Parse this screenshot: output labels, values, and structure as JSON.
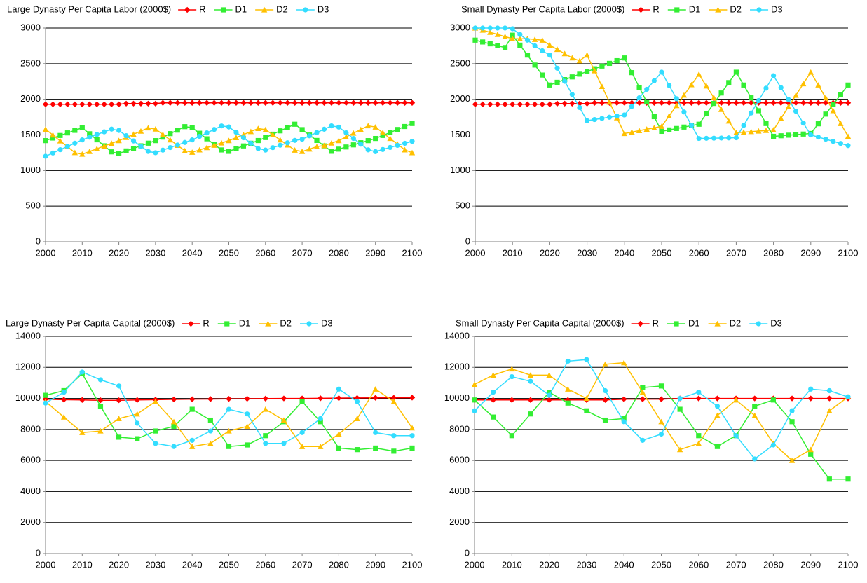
{
  "chart_data": [
    {
      "type": "line",
      "title": "Large Dynasty Per Capita Labor (2000$)",
      "grid": true,
      "x": [
        2000,
        2002,
        2004,
        2006,
        2008,
        2010,
        2012,
        2014,
        2016,
        2018,
        2020,
        2022,
        2024,
        2026,
        2028,
        2030,
        2032,
        2034,
        2036,
        2038,
        2040,
        2042,
        2044,
        2046,
        2048,
        2050,
        2052,
        2054,
        2056,
        2058,
        2060,
        2062,
        2064,
        2066,
        2068,
        2070,
        2072,
        2074,
        2076,
        2078,
        2080,
        2082,
        2084,
        2086,
        2088,
        2090,
        2092,
        2094,
        2096,
        2098,
        2100
      ],
      "xlim": [
        2000,
        2100
      ],
      "xticks": [
        2000,
        2010,
        2020,
        2030,
        2040,
        2050,
        2060,
        2070,
        2080,
        2090,
        2100
      ],
      "ylim": [
        0,
        3000
      ],
      "yticks": [
        0,
        500,
        1000,
        1500,
        2000,
        2500,
        3000
      ],
      "series": [
        {
          "name": "R",
          "color": "#ff0000",
          "marker": "diamond",
          "values": [
            1930,
            1930,
            1930,
            1930,
            1930,
            1930,
            1930,
            1930,
            1930,
            1930,
            1930,
            1940,
            1940,
            1940,
            1940,
            1940,
            1950,
            1950,
            1950,
            1950,
            1950,
            1950,
            1950,
            1950,
            1950,
            1950,
            1950,
            1950,
            1950,
            1950,
            1950,
            1950,
            1950,
            1950,
            1950,
            1950,
            1950,
            1950,
            1950,
            1950,
            1950,
            1950,
            1950,
            1950,
            1950,
            1950,
            1950,
            1950,
            1950,
            1950,
            1950
          ]
        },
        {
          "name": "D1",
          "color": "#33ee33",
          "marker": "square",
          "values": [
            1420,
            1456,
            1492,
            1528,
            1564,
            1600,
            1516,
            1431,
            1347,
            1262,
            1238,
            1275,
            1311,
            1347,
            1384,
            1420,
            1469,
            1518,
            1567,
            1616,
            1601,
            1523,
            1445,
            1367,
            1289,
            1269,
            1307,
            1345,
            1383,
            1421,
            1463,
            1510,
            1557,
            1603,
            1650,
            1574,
            1498,
            1422,
            1346,
            1270,
            1300,
            1330,
            1360,
            1390,
            1420,
            1450,
            1492,
            1534,
            1576,
            1618,
            1660
          ]
        },
        {
          "name": "D2",
          "color": "#ffc000",
          "marker": "triangle",
          "values": [
            1580,
            1498,
            1416,
            1334,
            1251,
            1229,
            1267,
            1305,
            1344,
            1382,
            1420,
            1464,
            1509,
            1553,
            1598,
            1582,
            1506,
            1430,
            1354,
            1278,
            1256,
            1289,
            1322,
            1355,
            1387,
            1420,
            1462,
            1504,
            1547,
            1589,
            1574,
            1502,
            1430,
            1358,
            1286,
            1267,
            1300,
            1335,
            1350,
            1385,
            1420,
            1472,
            1524,
            1576,
            1628,
            1610,
            1530,
            1450,
            1370,
            1290,
            1250
          ]
        },
        {
          "name": "D3",
          "color": "#33ddff",
          "marker": "circle",
          "values": [
            1200,
            1246,
            1292,
            1338,
            1384,
            1430,
            1468,
            1506,
            1543,
            1581,
            1563,
            1489,
            1415,
            1341,
            1267,
            1250,
            1286,
            1322,
            1358,
            1394,
            1430,
            1479,
            1528,
            1577,
            1626,
            1612,
            1536,
            1460,
            1384,
            1308,
            1287,
            1321,
            1355,
            1389,
            1423,
            1440,
            1487,
            1533,
            1580,
            1627,
            1610,
            1530,
            1450,
            1370,
            1290,
            1265,
            1295,
            1324,
            1353,
            1382,
            1410
          ]
        }
      ]
    },
    {
      "type": "line",
      "title": "Small Dynasty Per Capita Labor (2000$)",
      "grid": true,
      "x": [
        2000,
        2002,
        2004,
        2006,
        2008,
        2010,
        2012,
        2014,
        2016,
        2018,
        2020,
        2022,
        2024,
        2026,
        2028,
        2030,
        2032,
        2034,
        2036,
        2038,
        2040,
        2042,
        2044,
        2046,
        2048,
        2050,
        2052,
        2054,
        2056,
        2058,
        2060,
        2062,
        2064,
        2066,
        2068,
        2070,
        2072,
        2074,
        2076,
        2078,
        2080,
        2082,
        2084,
        2086,
        2088,
        2090,
        2092,
        2094,
        2096,
        2098,
        2100
      ],
      "xlim": [
        2000,
        2100
      ],
      "xticks": [
        2000,
        2010,
        2020,
        2030,
        2040,
        2050,
        2060,
        2070,
        2080,
        2090,
        2100
      ],
      "ylim": [
        0,
        3000
      ],
      "yticks": [
        0,
        500,
        1000,
        1500,
        2000,
        2500,
        3000
      ],
      "series": [
        {
          "name": "R",
          "color": "#ff0000",
          "marker": "diamond",
          "values": [
            1930,
            1930,
            1930,
            1930,
            1930,
            1930,
            1930,
            1930,
            1930,
            1930,
            1930,
            1940,
            1940,
            1940,
            1940,
            1940,
            1950,
            1950,
            1950,
            1950,
            1950,
            1950,
            1950,
            1950,
            1950,
            1950,
            1950,
            1950,
            1950,
            1950,
            1950,
            1950,
            1950,
            1950,
            1950,
            1950,
            1950,
            1950,
            1950,
            1950,
            1950,
            1950,
            1950,
            1950,
            1950,
            1950,
            1950,
            1950,
            1950,
            1950,
            1950
          ]
        },
        {
          "name": "D1",
          "color": "#33ee33",
          "marker": "square",
          "values": [
            2830,
            2804,
            2778,
            2752,
            2726,
            2900,
            2760,
            2620,
            2480,
            2340,
            2200,
            2238,
            2276,
            2314,
            2352,
            2390,
            2428,
            2466,
            2504,
            2542,
            2580,
            2374,
            2168,
            1962,
            1756,
            1550,
            1570,
            1590,
            1610,
            1630,
            1650,
            1796,
            1942,
            2088,
            2234,
            2380,
            2200,
            2020,
            1840,
            1660,
            1480,
            1488,
            1496,
            1504,
            1512,
            1520,
            1656,
            1792,
            1928,
            2064,
            2200
          ]
        },
        {
          "name": "D2",
          "color": "#ffc000",
          "marker": "triangle",
          "values": [
            3000,
            2970,
            2940,
            2910,
            2880,
            2850,
            2850,
            2850,
            2840,
            2830,
            2760,
            2700,
            2640,
            2580,
            2540,
            2620,
            2400,
            2180,
            1960,
            1740,
            1520,
            1540,
            1560,
            1580,
            1600,
            1620,
            1766,
            1912,
            2058,
            2204,
            2350,
            2186,
            2022,
            1858,
            1694,
            1530,
            1538,
            1546,
            1554,
            1562,
            1570,
            1732,
            1894,
            2056,
            2218,
            2380,
            2200,
            2020,
            1840,
            1660,
            1480
          ]
        },
        {
          "name": "D3",
          "color": "#33ddff",
          "marker": "circle",
          "values": [
            3000,
            3000,
            3000,
            3000,
            3000,
            2990,
            2910,
            2830,
            2750,
            2680,
            2620,
            2436,
            2252,
            2068,
            1884,
            1700,
            1716,
            1732,
            1748,
            1764,
            1780,
            1900,
            2020,
            2140,
            2260,
            2380,
            2194,
            2008,
            1822,
            1636,
            1450,
            1452,
            1454,
            1456,
            1458,
            1460,
            1634,
            1808,
            1982,
            2156,
            2330,
            2164,
            1998,
            1832,
            1666,
            1500,
            1470,
            1440,
            1410,
            1380,
            1350
          ]
        }
      ]
    },
    {
      "type": "line",
      "title": "Large Dynasty Per Capita Capital (2000$)",
      "grid": true,
      "x": [
        2000,
        2005,
        2010,
        2015,
        2020,
        2025,
        2030,
        2035,
        2040,
        2045,
        2050,
        2055,
        2060,
        2065,
        2070,
        2075,
        2080,
        2085,
        2090,
        2095,
        2100
      ],
      "xlim": [
        2000,
        2100
      ],
      "xticks": [
        2000,
        2010,
        2020,
        2030,
        2040,
        2050,
        2060,
        2070,
        2080,
        2090,
        2100
      ],
      "ylim": [
        0,
        14000
      ],
      "yticks": [
        0,
        2000,
        4000,
        6000,
        8000,
        10000,
        12000,
        14000
      ],
      "series": [
        {
          "name": "R",
          "color": "#ff0000",
          "marker": "diamond",
          "values": [
            9950,
            9920,
            9900,
            9880,
            9880,
            9900,
            9920,
            9940,
            9950,
            9960,
            9970,
            9980,
            9990,
            10000,
            10000,
            10010,
            10020,
            10030,
            10040,
            10040,
            10050
          ]
        },
        {
          "name": "D1",
          "color": "#33ee33",
          "marker": "square",
          "values": [
            10200,
            10500,
            11600,
            9500,
            7500,
            7400,
            7900,
            8200,
            9300,
            8600,
            6900,
            7000,
            7600,
            8500,
            9800,
            8500,
            6800,
            6700,
            6800,
            6600,
            6800
          ]
        },
        {
          "name": "D2",
          "color": "#ffc000",
          "marker": "triangle",
          "values": [
            9800,
            8800,
            7800,
            7900,
            8700,
            9000,
            9800,
            8500,
            6900,
            7100,
            7900,
            8200,
            9300,
            8600,
            6900,
            6900,
            7700,
            8700,
            10600,
            9800,
            8100
          ]
        },
        {
          "name": "D3",
          "color": "#33ddff",
          "marker": "circle",
          "values": [
            9700,
            10400,
            11700,
            11200,
            10800,
            8400,
            7100,
            6900,
            7300,
            7900,
            9300,
            9000,
            7100,
            7100,
            7800,
            8700,
            10600,
            9800,
            7800,
            7600,
            7600
          ]
        }
      ]
    },
    {
      "type": "line",
      "title": "Small Dynasty Per Capita Capital (2000$)",
      "grid": true,
      "x": [
        2000,
        2005,
        2010,
        2015,
        2020,
        2025,
        2030,
        2035,
        2040,
        2045,
        2050,
        2055,
        2060,
        2065,
        2070,
        2075,
        2080,
        2085,
        2090,
        2095,
        2100
      ],
      "xlim": [
        2000,
        2100
      ],
      "xticks": [
        2000,
        2010,
        2020,
        2030,
        2040,
        2050,
        2060,
        2070,
        2080,
        2090,
        2100
      ],
      "ylim": [
        0,
        14000
      ],
      "yticks": [
        0,
        2000,
        4000,
        6000,
        8000,
        10000,
        12000,
        14000
      ],
      "series": [
        {
          "name": "R",
          "color": "#ff0000",
          "marker": "diamond",
          "values": [
            9900,
            9900,
            9900,
            9900,
            9900,
            9900,
            9900,
            9900,
            9950,
            9950,
            9950,
            10000,
            10000,
            10000,
            10000,
            10000,
            10000,
            10000,
            10000,
            10000,
            10000
          ]
        },
        {
          "name": "D1",
          "color": "#33ee33",
          "marker": "square",
          "values": [
            9900,
            8800,
            7600,
            9000,
            10400,
            9700,
            9200,
            8600,
            8700,
            10700,
            10800,
            9300,
            7600,
            6900,
            7600,
            9500,
            9900,
            8500,
            6400,
            4800,
            4800
          ]
        },
        {
          "name": "D2",
          "color": "#ffc000",
          "marker": "triangle",
          "values": [
            10900,
            11500,
            11900,
            11500,
            11500,
            10600,
            10000,
            12200,
            12300,
            10400,
            8500,
            6700,
            7100,
            8900,
            9900,
            8900,
            7100,
            6000,
            6700,
            9200,
            10100
          ]
        },
        {
          "name": "D3",
          "color": "#33ddff",
          "marker": "circle",
          "values": [
            9200,
            10400,
            11400,
            11100,
            10200,
            12400,
            12500,
            10500,
            8500,
            7300,
            7700,
            10000,
            10400,
            9500,
            7600,
            6100,
            7000,
            9200,
            10600,
            10500,
            10100
          ]
        }
      ]
    }
  ]
}
